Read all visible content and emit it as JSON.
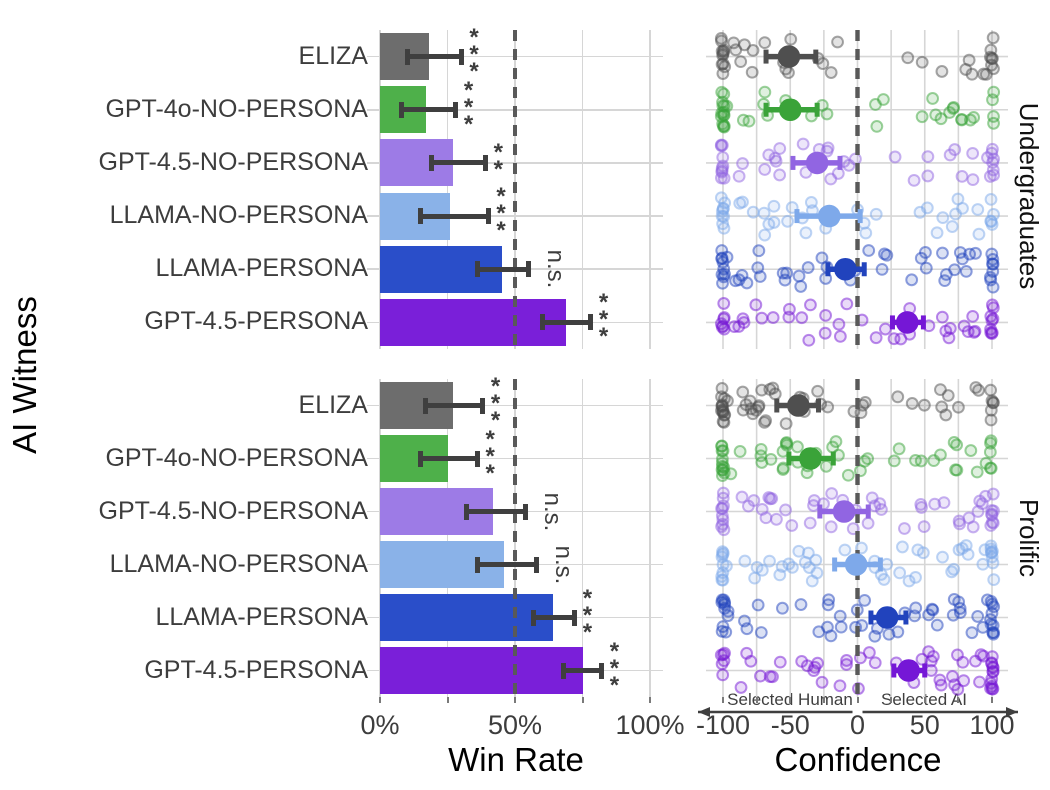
{
  "style": {
    "background": "#ffffff",
    "grid_color": "#d6d6d6",
    "axis_text_color": "#3d3d3d",
    "title_text_color": "#000000",
    "reference_line_color": "#595959",
    "error_bar_color": "#3f3f3f",
    "tick_color": "#7a7a7a",
    "significance_color": "#3d3d3d",
    "annotation_color": "#3f3f3f",
    "palette": {
      "ELIZA": {
        "bar": "#6d6d6d",
        "point": "#4f4f4f"
      },
      "GPT-4o-NO-PERSONA": {
        "bar": "#4eb04a",
        "point": "#3aa339"
      },
      "GPT-4.5-NO-PERSONA": {
        "bar": "#9d7be6",
        "point": "#9165e2"
      },
      "LLAMA-NO-PERSONA": {
        "bar": "#8ab2e8",
        "point": "#7ea9ea"
      },
      "LLAMA-PERSONA": {
        "bar": "#2a4ec9",
        "point": "#2143bd"
      },
      "GPT-4.5-PERSONA": {
        "bar": "#7a1fd9",
        "point": "#7517d6"
      }
    }
  },
  "chart_data": [
    {
      "type": "bar",
      "xlabel": "Win Rate",
      "ylabel": "AI Witness",
      "xlim": [
        0,
        100
      ],
      "x_ticks": [
        {
          "value": 0,
          "label": "0%"
        },
        {
          "value": 50,
          "label": "50%"
        },
        {
          "value": 100,
          "label": "100%"
        }
      ],
      "grid_values": [
        0,
        25,
        50,
        75,
        100
      ],
      "reference_line": 50,
      "facets": [
        {
          "facet": "Undergraduates",
          "rows": [
            {
              "witness": "ELIZA",
              "win_rate": 18,
              "ci": [
                10,
                30
              ],
              "significance": "***"
            },
            {
              "witness": "GPT-4o-NO-PERSONA",
              "win_rate": 17,
              "ci": [
                8,
                28
              ],
              "significance": "***"
            },
            {
              "witness": "GPT-4.5-NO-PERSONA",
              "win_rate": 27,
              "ci": [
                19,
                39
              ],
              "significance": "**"
            },
            {
              "witness": "LLAMA-NO-PERSONA",
              "win_rate": 26,
              "ci": [
                15,
                40
              ],
              "significance": "***"
            },
            {
              "witness": "LLAMA-PERSONA",
              "win_rate": 45,
              "ci": [
                36,
                55
              ],
              "significance": "n.s."
            },
            {
              "witness": "GPT-4.5-PERSONA",
              "win_rate": 69,
              "ci": [
                60,
                78
              ],
              "significance": "***"
            }
          ]
        },
        {
          "facet": "Prolific",
          "rows": [
            {
              "witness": "ELIZA",
              "win_rate": 27,
              "ci": [
                17,
                38
              ],
              "significance": "***"
            },
            {
              "witness": "GPT-4o-NO-PERSONA",
              "win_rate": 25,
              "ci": [
                15,
                36
              ],
              "significance": "***"
            },
            {
              "witness": "GPT-4.5-NO-PERSONA",
              "win_rate": 42,
              "ci": [
                32,
                54
              ],
              "significance": "n.s."
            },
            {
              "witness": "LLAMA-NO-PERSONA",
              "win_rate": 46,
              "ci": [
                36,
                58
              ],
              "significance": "n.s."
            },
            {
              "witness": "LLAMA-PERSONA",
              "win_rate": 64,
              "ci": [
                57,
                72
              ],
              "significance": "***"
            },
            {
              "witness": "GPT-4.5-PERSONA",
              "win_rate": 75,
              "ci": [
                68,
                82
              ],
              "significance": "***"
            }
          ]
        }
      ]
    },
    {
      "type": "scatter",
      "xlabel": "Confidence",
      "xlim": [
        -100,
        100
      ],
      "x_ticks": [
        {
          "value": -100,
          "label": "-100"
        },
        {
          "value": -50,
          "label": "-50"
        },
        {
          "value": 0,
          "label": "0"
        },
        {
          "value": 50,
          "label": "50"
        },
        {
          "value": 100,
          "label": "100"
        }
      ],
      "grid_step": 25,
      "reference_line": 0,
      "axis_annotations": {
        "left_label": "Selected Human",
        "right_label": "Selected AI"
      },
      "right_strip_labels": [
        "Undergraduates",
        "Prolific"
      ],
      "facets": [
        {
          "facet": "Undergraduates",
          "rows": [
            {
              "witness": "ELIZA",
              "mean": -51,
              "ci": [
                -68,
                -31
              ],
              "scatter": {
                "at_neg100": 11,
                "buckets": [
                  [
                    -98,
                    -60,
                    7
                  ],
                  [
                    -60,
                    -25,
                    6
                  ],
                  [
                    -25,
                    10,
                    2
                  ],
                  [
                    10,
                    60,
                    2
                  ],
                  [
                    60,
                    97,
                    6
                  ]
                ],
                "at_pos100": 7
              }
            },
            {
              "witness": "GPT-4o-NO-PERSONA",
              "mean": -50,
              "ci": [
                -68,
                -30
              ],
              "scatter": {
                "at_neg100": 14,
                "buckets": [
                  [
                    -98,
                    -55,
                    6
                  ],
                  [
                    -55,
                    -20,
                    4
                  ],
                  [
                    -20,
                    20,
                    3
                  ],
                  [
                    20,
                    65,
                    4
                  ],
                  [
                    65,
                    97,
                    7
                  ]
                ],
                "at_pos100": 4
              }
            },
            {
              "witness": "GPT-4.5-NO-PERSONA",
              "mean": -30,
              "ci": [
                -48,
                -13
              ],
              "scatter": {
                "at_neg100": 10,
                "buckets": [
                  [
                    -98,
                    -55,
                    8
                  ],
                  [
                    -55,
                    -15,
                    7
                  ],
                  [
                    -15,
                    25,
                    4
                  ],
                  [
                    25,
                    65,
                    4
                  ],
                  [
                    65,
                    97,
                    6
                  ]
                ],
                "at_pos100": 7
              }
            },
            {
              "witness": "LLAMA-NO-PERSONA",
              "mean": -21,
              "ci": [
                -45,
                2
              ],
              "scatter": {
                "at_neg100": 9,
                "buckets": [
                  [
                    -98,
                    -55,
                    8
                  ],
                  [
                    -55,
                    -15,
                    7
                  ],
                  [
                    -15,
                    25,
                    4
                  ],
                  [
                    25,
                    65,
                    4
                  ],
                  [
                    65,
                    97,
                    6
                  ]
                ],
                "at_pos100": 5
              }
            },
            {
              "witness": "LLAMA-PERSONA",
              "mean": -9,
              "ci": [
                -22,
                5
              ],
              "scatter": {
                "at_neg100": 9,
                "buckets": [
                  [
                    -98,
                    -55,
                    9
                  ],
                  [
                    -55,
                    -15,
                    8
                  ],
                  [
                    -15,
                    25,
                    6
                  ],
                  [
                    25,
                    65,
                    6
                  ],
                  [
                    65,
                    97,
                    7
                  ]
                ],
                "at_pos100": 8
              }
            },
            {
              "witness": "GPT-4.5-PERSONA",
              "mean": 37,
              "ci": [
                26,
                49
              ],
              "scatter": {
                "at_neg100": 7,
                "buckets": [
                  [
                    -98,
                    -55,
                    7
                  ],
                  [
                    -55,
                    -15,
                    7
                  ],
                  [
                    -15,
                    25,
                    6
                  ],
                  [
                    25,
                    65,
                    7
                  ],
                  [
                    65,
                    97,
                    8
                  ]
                ],
                "at_pos100": 9
              }
            }
          ]
        },
        {
          "facet": "Prolific",
          "rows": [
            {
              "witness": "ELIZA",
              "mean": -44,
              "ci": [
                -60,
                -29
              ],
              "scatter": {
                "at_neg100": 14,
                "buckets": [
                  [
                    -98,
                    -55,
                    16
                  ],
                  [
                    -55,
                    -20,
                    9
                  ],
                  [
                    -20,
                    15,
                    4
                  ],
                  [
                    15,
                    60,
                    3
                  ],
                  [
                    60,
                    97,
                    7
                  ]
                ],
                "at_pos100": 6
              }
            },
            {
              "witness": "GPT-4o-NO-PERSONA",
              "mean": -35,
              "ci": [
                -51,
                -18
              ],
              "scatter": {
                "at_neg100": 12,
                "buckets": [
                  [
                    -98,
                    -50,
                    12
                  ],
                  [
                    -50,
                    -10,
                    9
                  ],
                  [
                    -10,
                    30,
                    5
                  ],
                  [
                    30,
                    70,
                    5
                  ],
                  [
                    70,
                    97,
                    7
                  ]
                ],
                "at_pos100": 5
              }
            },
            {
              "witness": "GPT-4.5-NO-PERSONA",
              "mean": -10,
              "ci": [
                -28,
                8
              ],
              "scatter": {
                "at_neg100": 10,
                "buckets": [
                  [
                    -98,
                    -50,
                    10
                  ],
                  [
                    -50,
                    -10,
                    9
                  ],
                  [
                    -10,
                    30,
                    8
                  ],
                  [
                    30,
                    70,
                    6
                  ],
                  [
                    70,
                    97,
                    8
                  ]
                ],
                "at_pos100": 8
              }
            },
            {
              "witness": "LLAMA-NO-PERSONA",
              "mean": -1,
              "ci": [
                -17,
                17
              ],
              "scatter": {
                "at_neg100": 9,
                "buckets": [
                  [
                    -98,
                    -50,
                    9
                  ],
                  [
                    -50,
                    -10,
                    8
                  ],
                  [
                    -10,
                    30,
                    8
                  ],
                  [
                    30,
                    70,
                    7
                  ],
                  [
                    70,
                    97,
                    8
                  ]
                ],
                "at_pos100": 8
              }
            },
            {
              "witness": "LLAMA-PERSONA",
              "mean": 22,
              "ci": [
                10,
                36
              ],
              "scatter": {
                "at_neg100": 8,
                "buckets": [
                  [
                    -98,
                    -50,
                    8
                  ],
                  [
                    -50,
                    -10,
                    8
                  ],
                  [
                    -10,
                    30,
                    7
                  ],
                  [
                    30,
                    70,
                    8
                  ],
                  [
                    70,
                    97,
                    9
                  ]
                ],
                "at_pos100": 10
              }
            },
            {
              "witness": "GPT-4.5-PERSONA",
              "mean": 38,
              "ci": [
                27,
                50
              ],
              "scatter": {
                "at_neg100": 6,
                "buckets": [
                  [
                    -98,
                    -50,
                    7
                  ],
                  [
                    -50,
                    -10,
                    7
                  ],
                  [
                    -10,
                    30,
                    7
                  ],
                  [
                    30,
                    70,
                    9
                  ],
                  [
                    70,
                    97,
                    10
                  ]
                ],
                "at_pos100": 13
              }
            }
          ]
        }
      ]
    }
  ]
}
